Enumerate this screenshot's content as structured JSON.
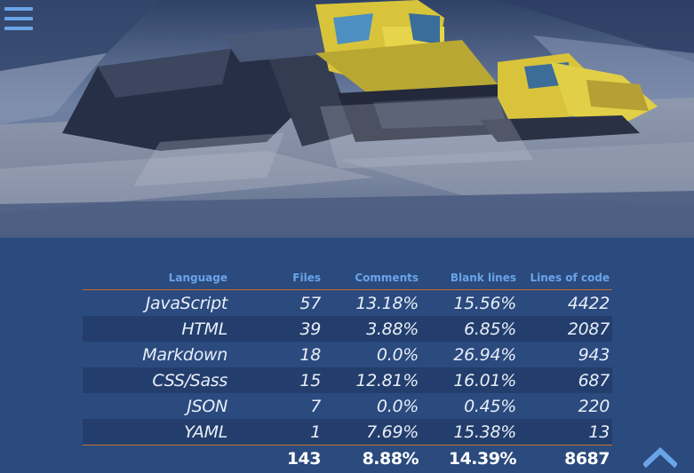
{
  "colors": {
    "panel_bg": "#2b4a7e",
    "stripe_bg": "#233e6c",
    "accent_blue": "#6aa4e8",
    "divider_orange": "#c8702a",
    "text": "#e8eef8"
  },
  "icons": {
    "menu": "hamburger-menu-icon",
    "top": "chevron-up-icon"
  },
  "table": {
    "headers": {
      "language": "Language",
      "files": "Files",
      "comments": "Comments",
      "blank": "Blank lines",
      "loc": "Lines of code"
    },
    "rows": [
      {
        "language": "JavaScript",
        "files": "57",
        "comments": "13.18%",
        "blank": "15.56%",
        "loc": "4422"
      },
      {
        "language": "HTML",
        "files": "39",
        "comments": "3.88%",
        "blank": "6.85%",
        "loc": "2087"
      },
      {
        "language": "Markdown",
        "files": "18",
        "comments": "0.0%",
        "blank": "26.94%",
        "loc": "943"
      },
      {
        "language": "CSS/Sass",
        "files": "15",
        "comments": "12.81%",
        "blank": "16.01%",
        "loc": "687"
      },
      {
        "language": "JSON",
        "files": "7",
        "comments": "0.0%",
        "blank": "0.45%",
        "loc": "220"
      },
      {
        "language": "YAML",
        "files": "1",
        "comments": "7.69%",
        "blank": "15.38%",
        "loc": "13"
      }
    ],
    "totals": {
      "files": "143",
      "comments": "8.88%",
      "blank": "14.39%",
      "loc": "8687"
    }
  }
}
